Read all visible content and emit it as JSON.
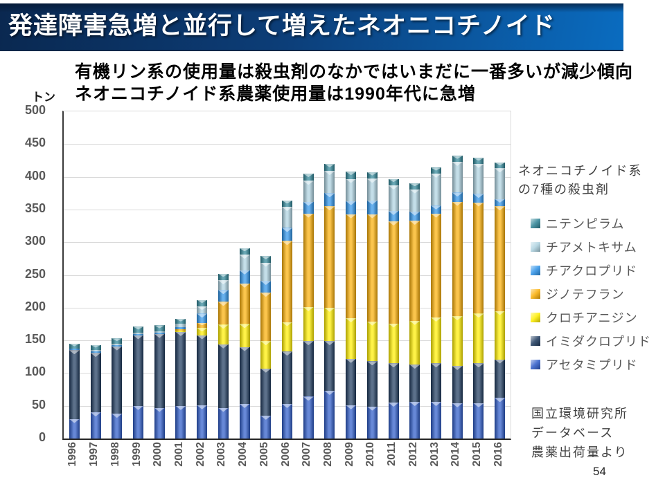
{
  "slide": {
    "title": "発達障害急増と並行して増えたネオニコチノイド",
    "page_number": "54"
  },
  "theme": {
    "titlebar_left": "#0A2850",
    "titlebar_right": "#0A6CC0",
    "title_text": "#FFFFFF"
  },
  "subtitle": {
    "line1": "有機リン系の使用量は殺虫剤のなかではいまだに一番多いが減少傾向",
    "line2": "ネオニコチノイド系農薬使用量は1990年代に急増"
  },
  "source": {
    "line1": "国立環境研究所",
    "line2": "データベース",
    "line3": "農薬出荷量より"
  },
  "chart_data": {
    "type": "bar",
    "subtype": "stacked-vertical",
    "unit_label": "トン",
    "ylabel": "トン",
    "ylim": [
      0,
      500
    ],
    "ytick_step": 50,
    "grid": "horizontal",
    "legend_position": "right",
    "legend_title": [
      "ネオニコチノイド系",
      "の7種の殺虫剤"
    ],
    "categories": [
      "1996",
      "1997",
      "1998",
      "1999",
      "2000",
      "2001",
      "2002",
      "2003",
      "2004",
      "2005",
      "2006",
      "2007",
      "2008",
      "2009",
      "2010",
      "2011",
      "2012",
      "2013",
      "2014",
      "2015",
      "2016"
    ],
    "series": [
      {
        "name": "アセタミプリド",
        "color": "#2D5BC8",
        "values": [
          30,
          40,
          38,
          50,
          47,
          50,
          51,
          47,
          53,
          35,
          53,
          64,
          73,
          51,
          49,
          55,
          56,
          56,
          54,
          54,
          62
        ]
      },
      {
        "name": "イミダクロプリド",
        "color": "#1E3A5E",
        "values": [
          105,
          91,
          103,
          108,
          113,
          113,
          107,
          97,
          87,
          72,
          80,
          85,
          76,
          71,
          69,
          60,
          57,
          59,
          57,
          61,
          59
        ]
      },
      {
        "name": "クロチアニジン",
        "color": "#FFEE00",
        "values": [
          0,
          0,
          0,
          0,
          0,
          2,
          11,
          30,
          35,
          42,
          45,
          52,
          51,
          62,
          61,
          61,
          67,
          70,
          76,
          76,
          74
        ]
      },
      {
        "name": "ジノテフラン",
        "color": "#FAAF08",
        "values": [
          0,
          0,
          0,
          0,
          0,
          2,
          8,
          35,
          62,
          74,
          124,
          143,
          155,
          159,
          164,
          156,
          153,
          159,
          175,
          170,
          160
        ]
      },
      {
        "name": "チアクロプリド",
        "color": "#2E93E8",
        "values": [
          2,
          2,
          2,
          2,
          2,
          3,
          14,
          18,
          20,
          18,
          20,
          18,
          20,
          20,
          21,
          16,
          14,
          12,
          14,
          13,
          11
        ]
      },
      {
        "name": "チアメトキサム",
        "color": "#ADD2E0",
        "values": [
          0,
          2,
          2,
          2,
          2,
          5,
          11,
          15,
          24,
          28,
          32,
          32,
          34,
          34,
          33,
          39,
          34,
          49,
          47,
          46,
          47
        ]
      },
      {
        "name": "ニテンピラム",
        "color": "#2E8496",
        "values": [
          8,
          8,
          8,
          9,
          9,
          8,
          10,
          10,
          10,
          10,
          10,
          11,
          11,
          11,
          10,
          10,
          9,
          9,
          9,
          9,
          9
        ]
      }
    ],
    "totals_approx": [
      145,
      143,
      153,
      171,
      173,
      183,
      212,
      252,
      291,
      279,
      364,
      405,
      420,
      408,
      407,
      397,
      390,
      414,
      432,
      429,
      422
    ]
  }
}
